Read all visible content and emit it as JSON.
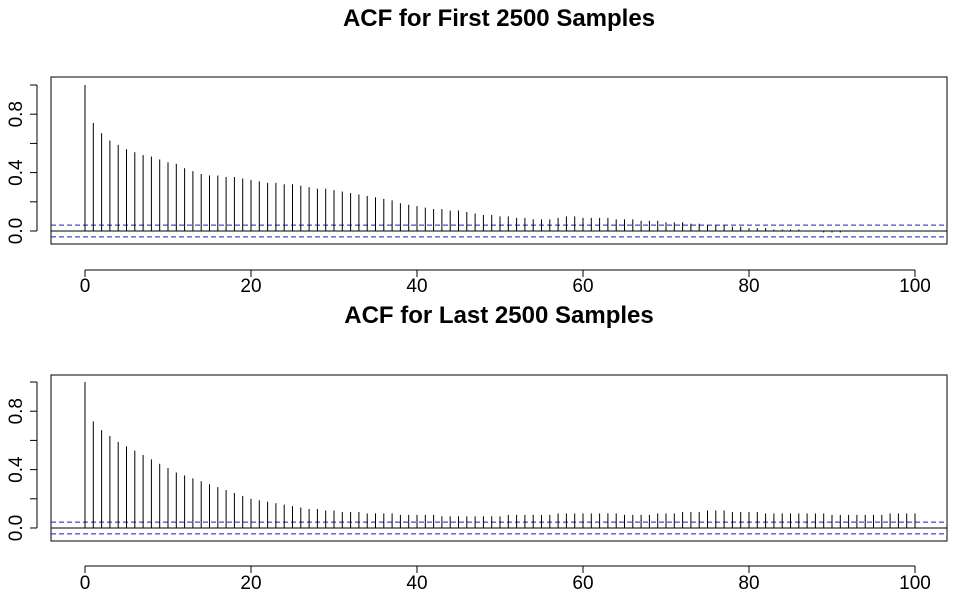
{
  "chart_data": [
    {
      "type": "bar",
      "title": "ACF for First 2500 Samples",
      "xlabel": "",
      "ylabel": "",
      "xlim": [
        0,
        100
      ],
      "ylim": [
        -0.05,
        1.0
      ],
      "x_ticks": [
        "0",
        "20",
        "40",
        "60",
        "80",
        "100"
      ],
      "y_ticks": [
        "0.0",
        "0.4",
        "0.8"
      ],
      "confidence_band": [
        0.04,
        -0.04
      ],
      "grid": false,
      "lags": [
        0,
        1,
        2,
        3,
        4,
        5,
        6,
        7,
        8,
        9,
        10,
        11,
        12,
        13,
        14,
        15,
        16,
        17,
        18,
        19,
        20,
        21,
        22,
        23,
        24,
        25,
        26,
        27,
        28,
        29,
        30,
        31,
        32,
        33,
        34,
        35,
        36,
        37,
        38,
        39,
        40,
        41,
        42,
        43,
        44,
        45,
        46,
        47,
        48,
        49,
        50,
        51,
        52,
        53,
        54,
        55,
        56,
        57,
        58,
        59,
        60,
        61,
        62,
        63,
        64,
        65,
        66,
        67,
        68,
        69,
        70,
        71,
        72,
        73,
        74,
        75,
        76,
        77,
        78,
        79,
        80,
        81,
        82,
        83,
        84,
        85,
        86,
        87,
        88,
        89,
        90,
        91,
        92,
        93,
        94,
        95,
        96,
        97,
        98,
        99,
        100
      ],
      "values": [
        1.0,
        0.74,
        0.67,
        0.62,
        0.59,
        0.56,
        0.54,
        0.52,
        0.51,
        0.49,
        0.47,
        0.46,
        0.43,
        0.41,
        0.39,
        0.38,
        0.38,
        0.37,
        0.37,
        0.36,
        0.35,
        0.34,
        0.33,
        0.33,
        0.32,
        0.32,
        0.31,
        0.3,
        0.29,
        0.29,
        0.28,
        0.27,
        0.26,
        0.25,
        0.24,
        0.23,
        0.22,
        0.21,
        0.19,
        0.18,
        0.17,
        0.16,
        0.15,
        0.15,
        0.14,
        0.14,
        0.13,
        0.12,
        0.11,
        0.11,
        0.1,
        0.1,
        0.09,
        0.09,
        0.08,
        0.08,
        0.08,
        0.09,
        0.1,
        0.1,
        0.09,
        0.09,
        0.09,
        0.09,
        0.08,
        0.08,
        0.08,
        0.07,
        0.07,
        0.07,
        0.06,
        0.06,
        0.06,
        0.05,
        0.05,
        0.04,
        0.04,
        0.04,
        0.03,
        0.03,
        0.02,
        0.02,
        0.02,
        0.01,
        0.01,
        0.01,
        0.01,
        0.0,
        0.0,
        -0.01,
        -0.01,
        -0.01,
        0.0,
        0.0,
        0.0,
        0.0,
        0.0,
        0.0,
        0.0,
        0.0,
        0.0
      ]
    },
    {
      "type": "bar",
      "title": "ACF for Last 2500 Samples",
      "xlabel": "",
      "ylabel": "",
      "xlim": [
        0,
        100
      ],
      "ylim": [
        -0.05,
        1.0
      ],
      "x_ticks": [
        "0",
        "20",
        "40",
        "60",
        "80",
        "100"
      ],
      "y_ticks": [
        "0.0",
        "0.4",
        "0.8"
      ],
      "confidence_band": [
        0.04,
        -0.04
      ],
      "grid": false,
      "lags": [
        0,
        1,
        2,
        3,
        4,
        5,
        6,
        7,
        8,
        9,
        10,
        11,
        12,
        13,
        14,
        15,
        16,
        17,
        18,
        19,
        20,
        21,
        22,
        23,
        24,
        25,
        26,
        27,
        28,
        29,
        30,
        31,
        32,
        33,
        34,
        35,
        36,
        37,
        38,
        39,
        40,
        41,
        42,
        43,
        44,
        45,
        46,
        47,
        48,
        49,
        50,
        51,
        52,
        53,
        54,
        55,
        56,
        57,
        58,
        59,
        60,
        61,
        62,
        63,
        64,
        65,
        66,
        67,
        68,
        69,
        70,
        71,
        72,
        73,
        74,
        75,
        76,
        77,
        78,
        79,
        80,
        81,
        82,
        83,
        84,
        85,
        86,
        87,
        88,
        89,
        90,
        91,
        92,
        93,
        94,
        95,
        96,
        97,
        98,
        99,
        100
      ],
      "values": [
        1.0,
        0.73,
        0.67,
        0.63,
        0.59,
        0.56,
        0.53,
        0.5,
        0.47,
        0.44,
        0.41,
        0.38,
        0.36,
        0.34,
        0.32,
        0.3,
        0.28,
        0.26,
        0.24,
        0.22,
        0.2,
        0.19,
        0.18,
        0.17,
        0.16,
        0.15,
        0.14,
        0.13,
        0.13,
        0.12,
        0.12,
        0.11,
        0.11,
        0.11,
        0.1,
        0.1,
        0.1,
        0.1,
        0.09,
        0.09,
        0.09,
        0.09,
        0.09,
        0.08,
        0.08,
        0.08,
        0.08,
        0.08,
        0.08,
        0.08,
        0.08,
        0.09,
        0.09,
        0.09,
        0.09,
        0.09,
        0.09,
        0.1,
        0.1,
        0.1,
        0.1,
        0.1,
        0.1,
        0.1,
        0.1,
        0.09,
        0.09,
        0.09,
        0.09,
        0.1,
        0.1,
        0.1,
        0.11,
        0.11,
        0.11,
        0.12,
        0.12,
        0.12,
        0.11,
        0.11,
        0.11,
        0.11,
        0.1,
        0.1,
        0.1,
        0.1,
        0.1,
        0.1,
        0.1,
        0.1,
        0.09,
        0.09,
        0.09,
        0.09,
        0.09,
        0.09,
        0.09,
        0.1,
        0.1,
        0.1,
        0.1
      ]
    }
  ]
}
